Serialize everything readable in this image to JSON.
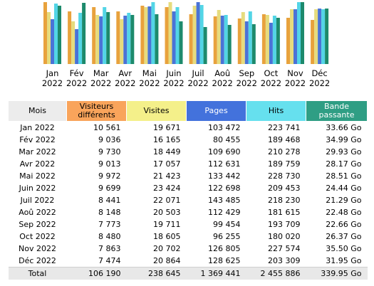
{
  "colors": {
    "visitors": "#e8a23d",
    "visits": "#e6dc7e",
    "pages": "#4a73d6",
    "hits": "#53d5e6",
    "bandwidth": "#1d8a6c"
  },
  "chart_data": {
    "type": "bar",
    "categories": [
      [
        "Jan",
        "2022"
      ],
      [
        "Fév",
        "2022"
      ],
      [
        "Mar",
        "2022"
      ],
      [
        "Avr",
        "2022"
      ],
      [
        "Mai",
        "2022"
      ],
      [
        "Juin",
        "2022"
      ],
      [
        "Juil",
        "2022"
      ],
      [
        "Aoû",
        "2022"
      ],
      [
        "Sep",
        "2022"
      ],
      [
        "Oct",
        "2022"
      ],
      [
        "Nov",
        "2022"
      ],
      [
        "Déc",
        "2022"
      ]
    ],
    "series": [
      {
        "key": "visitors",
        "values": [
          10561,
          9036,
          9730,
          9013,
          9972,
          9699,
          8441,
          8148,
          7773,
          8480,
          7863,
          7474
        ]
      },
      {
        "key": "visits",
        "values": [
          19671,
          16165,
          18449,
          17057,
          21423,
          23424,
          22071,
          20503,
          19711,
          18605,
          20702,
          20864
        ]
      },
      {
        "key": "pages",
        "values": [
          103472,
          80455,
          109690,
          112631,
          133442,
          122698,
          143485,
          112429,
          99454,
          96255,
          126805,
          128625
        ]
      },
      {
        "key": "hits",
        "values": [
          223741,
          189468,
          210278,
          189759,
          228730,
          209453,
          218230,
          181615,
          193709,
          180020,
          227574,
          203309
        ]
      },
      {
        "key": "bandwidth",
        "values": [
          33.66,
          34.99,
          29.93,
          28.17,
          28.51,
          24.44,
          21.29,
          22.48,
          22.66,
          26.37,
          35.5,
          31.95
        ]
      }
    ]
  },
  "table": {
    "headers": {
      "month": "Mois",
      "visitors_1": "Visiteurs",
      "visitors_2": "différents",
      "visits": "Visites",
      "pages": "Pages",
      "hits": "Hits",
      "bandwidth_1": "Bande",
      "bandwidth_2": "passante"
    },
    "rows": [
      {
        "month": "Jan 2022",
        "visitors": "10 561",
        "visits": "19 671",
        "pages": "103 472",
        "hits": "223 741",
        "bandwidth": "33.66 Go"
      },
      {
        "month": "Fév 2022",
        "visitors": "9 036",
        "visits": "16 165",
        "pages": "80 455",
        "hits": "189 468",
        "bandwidth": "34.99 Go"
      },
      {
        "month": "Mar 2022",
        "visitors": "9 730",
        "visits": "18 449",
        "pages": "109 690",
        "hits": "210 278",
        "bandwidth": "29.93 Go"
      },
      {
        "month": "Avr 2022",
        "visitors": "9 013",
        "visits": "17 057",
        "pages": "112 631",
        "hits": "189 759",
        "bandwidth": "28.17 Go"
      },
      {
        "month": "Mai 2022",
        "visitors": "9 972",
        "visits": "21 423",
        "pages": "133 442",
        "hits": "228 730",
        "bandwidth": "28.51 Go"
      },
      {
        "month": "Juin 2022",
        "visitors": "9 699",
        "visits": "23 424",
        "pages": "122 698",
        "hits": "209 453",
        "bandwidth": "24.44 Go"
      },
      {
        "month": "Juil 2022",
        "visitors": "8 441",
        "visits": "22 071",
        "pages": "143 485",
        "hits": "218 230",
        "bandwidth": "21.29 Go"
      },
      {
        "month": "Aoû 2022",
        "visitors": "8 148",
        "visits": "20 503",
        "pages": "112 429",
        "hits": "181 615",
        "bandwidth": "22.48 Go"
      },
      {
        "month": "Sep 2022",
        "visitors": "7 773",
        "visits": "19 711",
        "pages": "99 454",
        "hits": "193 709",
        "bandwidth": "22.66 Go"
      },
      {
        "month": "Oct 2022",
        "visitors": "8 480",
        "visits": "18 605",
        "pages": "96 255",
        "hits": "180 020",
        "bandwidth": "26.37 Go"
      },
      {
        "month": "Nov 2022",
        "visitors": "7 863",
        "visits": "20 702",
        "pages": "126 805",
        "hits": "227 574",
        "bandwidth": "35.50 Go"
      },
      {
        "month": "Déc 2022",
        "visitors": "7 474",
        "visits": "20 864",
        "pages": "128 625",
        "hits": "203 309",
        "bandwidth": "31.95 Go"
      }
    ],
    "total": {
      "month": "Total",
      "visitors": "106 190",
      "visits": "238 645",
      "pages": "1 369 441",
      "hits": "2 455 886",
      "bandwidth": "339.95 Go"
    }
  }
}
